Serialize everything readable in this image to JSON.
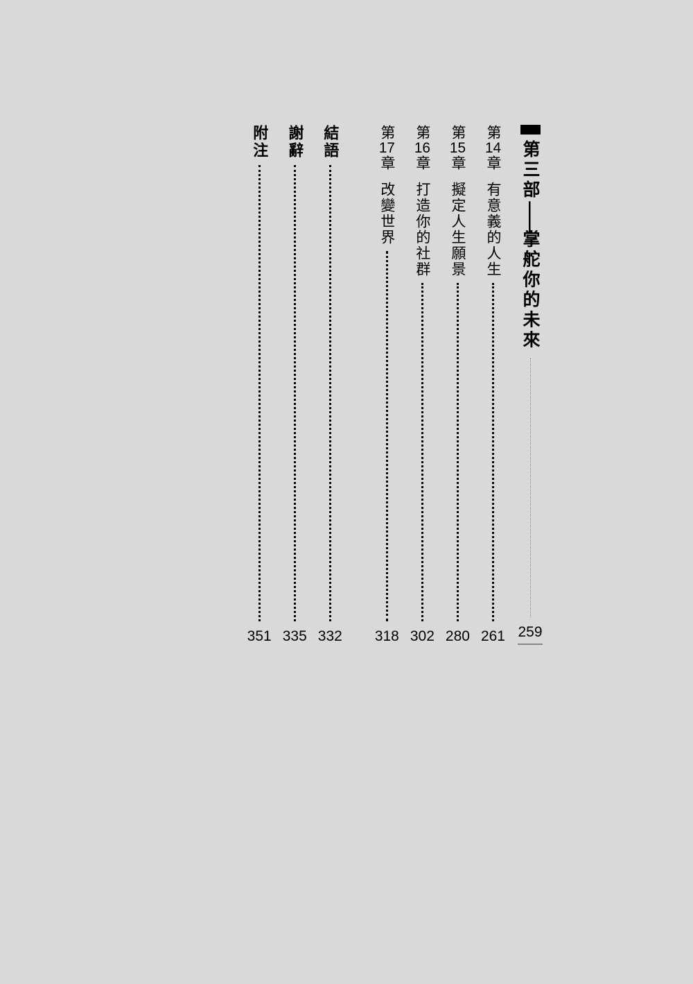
{
  "background_color": "#d9d9d9",
  "text_color": "#000000",
  "lighter_dot_color": "#888888",
  "column_height": 750,
  "part": {
    "text_before": "第三部",
    "dash": "——",
    "text_after": "掌舵你的未來",
    "page": "259",
    "fontsize": 25
  },
  "chapters": [
    {
      "label_pre": "第",
      "num": "14",
      "label_post": "章",
      "title": "有意義的人生",
      "page": "261"
    },
    {
      "label_pre": "第",
      "num": "15",
      "label_post": "章",
      "title": "擬定人生願景",
      "page": "280"
    },
    {
      "label_pre": "第",
      "num": "16",
      "label_post": "章",
      "title": "打造你的社群",
      "page": "302"
    },
    {
      "label_pre": "第",
      "num": "17",
      "label_post": "章",
      "title": "改變世界",
      "page": "318"
    }
  ],
  "backmatter": [
    {
      "label": "結語",
      "page": "332"
    },
    {
      "label": "謝辭",
      "page": "335"
    },
    {
      "label": "附注",
      "page": "351"
    }
  ],
  "fonts": {
    "chapter_fontsize": 21,
    "back_fontsize": 22,
    "page_fontsize": 21
  }
}
